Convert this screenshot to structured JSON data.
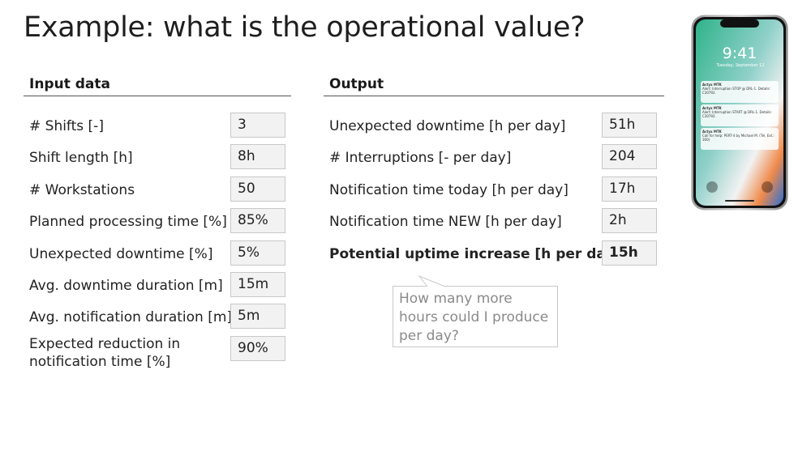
{
  "title": "Example: what is the operational value?",
  "input": {
    "header": "Input data",
    "rows": [
      {
        "label": "# Shifts [-]",
        "value": "3"
      },
      {
        "label": "Shift length [h]",
        "value": "8h"
      },
      {
        "label": "# Workstations",
        "value": "50"
      },
      {
        "label": "Planned processing time [%]",
        "value": "85%"
      },
      {
        "label": "Unexpected downtime [%]",
        "value": "5%"
      },
      {
        "label": "Avg. downtime duration [m]",
        "value": "15m"
      },
      {
        "label": "Avg. notification duration [m]",
        "value": "5m"
      },
      {
        "label": "Expected reduction in notification time [%]",
        "value": "90%"
      }
    ]
  },
  "output": {
    "header": "Output",
    "rows": [
      {
        "label": "Unexpected downtime [h per day]",
        "value": "51h"
      },
      {
        "label": "# Interruptions [- per day]",
        "value": "204"
      },
      {
        "label": "Notification time today [h per day]",
        "value": "17h"
      },
      {
        "label": "Notification time NEW [h per day]",
        "value": "2h"
      },
      {
        "label": "Potential uptime increase [h per day]",
        "value": "15h"
      }
    ]
  },
  "callout": "How many more hours could I produce per day?",
  "phone": {
    "time": "9:41",
    "date": "Tuesday, September 12",
    "notifications": [
      {
        "app": "Actyx MTK",
        "text": "Alert: Interruption STOP @ DRL-1. Details: C30792."
      },
      {
        "app": "Actyx MTK",
        "text": "Alert: Interruption START @ DRL-1. Details: C30792."
      },
      {
        "app": "Actyx MTK",
        "text": "Call for help: PERT-4 by Michael M. (Tel. Ext.: 300)"
      }
    ]
  },
  "colors": {
    "box_fill": "#f2f2f2",
    "box_border": "#c8c8c8",
    "callout_text": "#8a8a8a"
  }
}
